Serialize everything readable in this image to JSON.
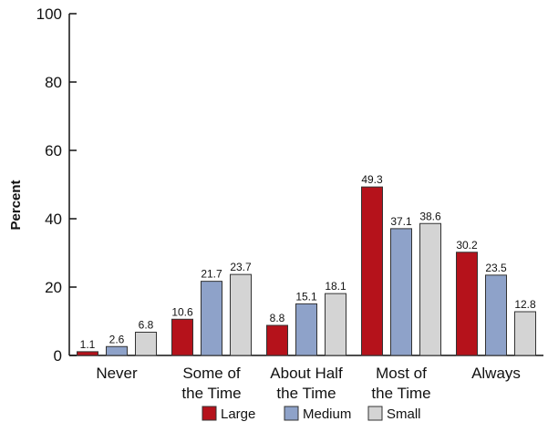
{
  "chart_data": {
    "type": "bar",
    "ylabel": "Percent",
    "xlabel": "",
    "ylim": [
      0,
      100
    ],
    "yticks": [
      0,
      20,
      40,
      60,
      80,
      100
    ],
    "categories": [
      [
        "Never"
      ],
      [
        "Some of",
        "the Time"
      ],
      [
        "About Half",
        "the Time"
      ],
      [
        "Most of",
        "the Time"
      ],
      [
        "Always"
      ]
    ],
    "series": [
      {
        "name": "Large",
        "color": "#b5121b",
        "values": [
          1.1,
          10.6,
          8.8,
          49.3,
          30.2
        ]
      },
      {
        "name": "Medium",
        "color": "#8ea2c9",
        "values": [
          2.6,
          21.7,
          15.1,
          37.1,
          23.5
        ]
      },
      {
        "name": "Small",
        "color": "#d4d4d4",
        "values": [
          6.8,
          23.7,
          18.1,
          38.6,
          12.8
        ]
      }
    ],
    "data_label_decimals": 1,
    "grid": false,
    "legend_position": "bottom"
  }
}
